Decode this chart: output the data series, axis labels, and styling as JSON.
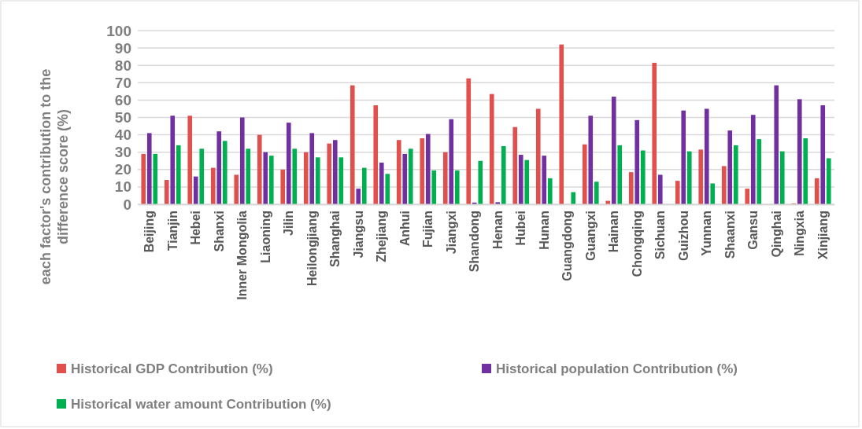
{
  "chart_data": {
    "type": "bar",
    "ylabel": "each factor's contribution to the difference score (%)",
    "categories": [
      "Beijing",
      "Tianjin",
      "Hebei",
      "Shanxi",
      "Inner Mongolia",
      "Liaoning",
      "Jilin",
      "Heilongjiang",
      "Shanghai",
      "Jiangsu",
      "Zhejiang",
      "Anhui",
      "Fujian",
      "Jiangxi",
      "Shandong",
      "Henan",
      "Hubei",
      "Hunan",
      "Guangdong",
      "Guangxi",
      "Hainan",
      "Chongqing",
      "Sichuan",
      "Guizhou",
      "Yunnan",
      "Shaanxi",
      "Gansu",
      "Qinghai",
      "Ningxia",
      "Xinjiang"
    ],
    "series": [
      {
        "name": "Historical GDP Contribution (%)",
        "color": "#e0504d",
        "values": [
          29,
          14,
          51,
          21,
          17,
          40,
          20,
          30,
          35,
          68.5,
          57,
          37,
          38,
          30,
          72.5,
          63.5,
          44.5,
          55,
          92,
          34.5,
          2,
          18.5,
          81.5,
          13.5,
          31.5,
          22,
          9,
          0,
          0.5,
          15
        ]
      },
      {
        "name": "Historical population Contribution (%)",
        "color": "#7030a0",
        "values": [
          41,
          51,
          16,
          42,
          50,
          30,
          47,
          41,
          37,
          9,
          24,
          29,
          40.5,
          49,
          1,
          1.2,
          28.5,
          28,
          0,
          51,
          62,
          48.5,
          17,
          54,
          55,
          42.5,
          51.5,
          68.5,
          60.5,
          57
        ]
      },
      {
        "name": "Historical water amount Contribution (%)",
        "color": "#00b050",
        "values": [
          29,
          34,
          32,
          36.5,
          32,
          28,
          32,
          27,
          27,
          21,
          17.5,
          32,
          19.5,
          19.5,
          25,
          33.5,
          25.5,
          15,
          7,
          13,
          34,
          31,
          0,
          30.5,
          12,
          34,
          37.5,
          30.5,
          38,
          26.5
        ]
      }
    ],
    "ylim": [
      0,
      100
    ],
    "yticks": [
      0,
      10,
      20,
      30,
      40,
      50,
      60,
      70,
      80,
      90,
      100
    ],
    "grid": "y",
    "legend": "bottom"
  }
}
